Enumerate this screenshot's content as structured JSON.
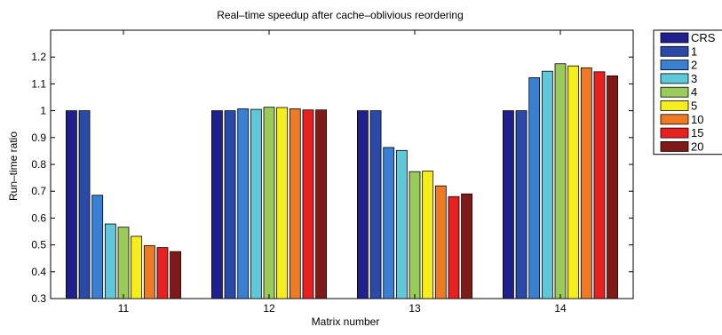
{
  "chart_data": {
    "type": "bar",
    "title": "Real–time speedup after cache–oblivious reordering",
    "xlabel": "Matrix number",
    "ylabel": "Run–time ratio",
    "ylim": [
      0.3,
      1.3
    ],
    "yticks": [
      "0.3",
      "0.4",
      "0.5",
      "0.6",
      "0.7",
      "0.8",
      "0.9",
      "1",
      "1.1",
      "1.2"
    ],
    "categories": [
      "11",
      "12",
      "13",
      "14"
    ],
    "legend_position": "outside-top-right",
    "series": [
      {
        "name": "CRS",
        "color": "#1f1f8f",
        "values": [
          1.0,
          1.0,
          1.0,
          1.0
        ]
      },
      {
        "name": "1",
        "color": "#2b4aa8",
        "values": [
          1.0,
          1.0,
          1.0,
          1.0
        ]
      },
      {
        "name": "2",
        "color": "#3a7fd0",
        "values": [
          0.685,
          1.007,
          0.863,
          1.123
        ]
      },
      {
        "name": "3",
        "color": "#5cc8d8",
        "values": [
          0.578,
          1.005,
          0.852,
          1.147
        ]
      },
      {
        "name": "4",
        "color": "#9acb5a",
        "values": [
          0.566,
          1.013,
          0.773,
          1.175
        ]
      },
      {
        "name": "5",
        "color": "#f5ee1c",
        "values": [
          0.532,
          1.012,
          0.775,
          1.167
        ]
      },
      {
        "name": "10",
        "color": "#f07a22",
        "values": [
          0.497,
          1.007,
          0.72,
          1.16
        ]
      },
      {
        "name": "15",
        "color": "#e8201f",
        "values": [
          0.49,
          1.003,
          0.68,
          1.145
        ]
      },
      {
        "name": "20",
        "color": "#7f1a1a",
        "values": [
          0.475,
          1.003,
          0.69,
          1.13
        ]
      }
    ]
  }
}
